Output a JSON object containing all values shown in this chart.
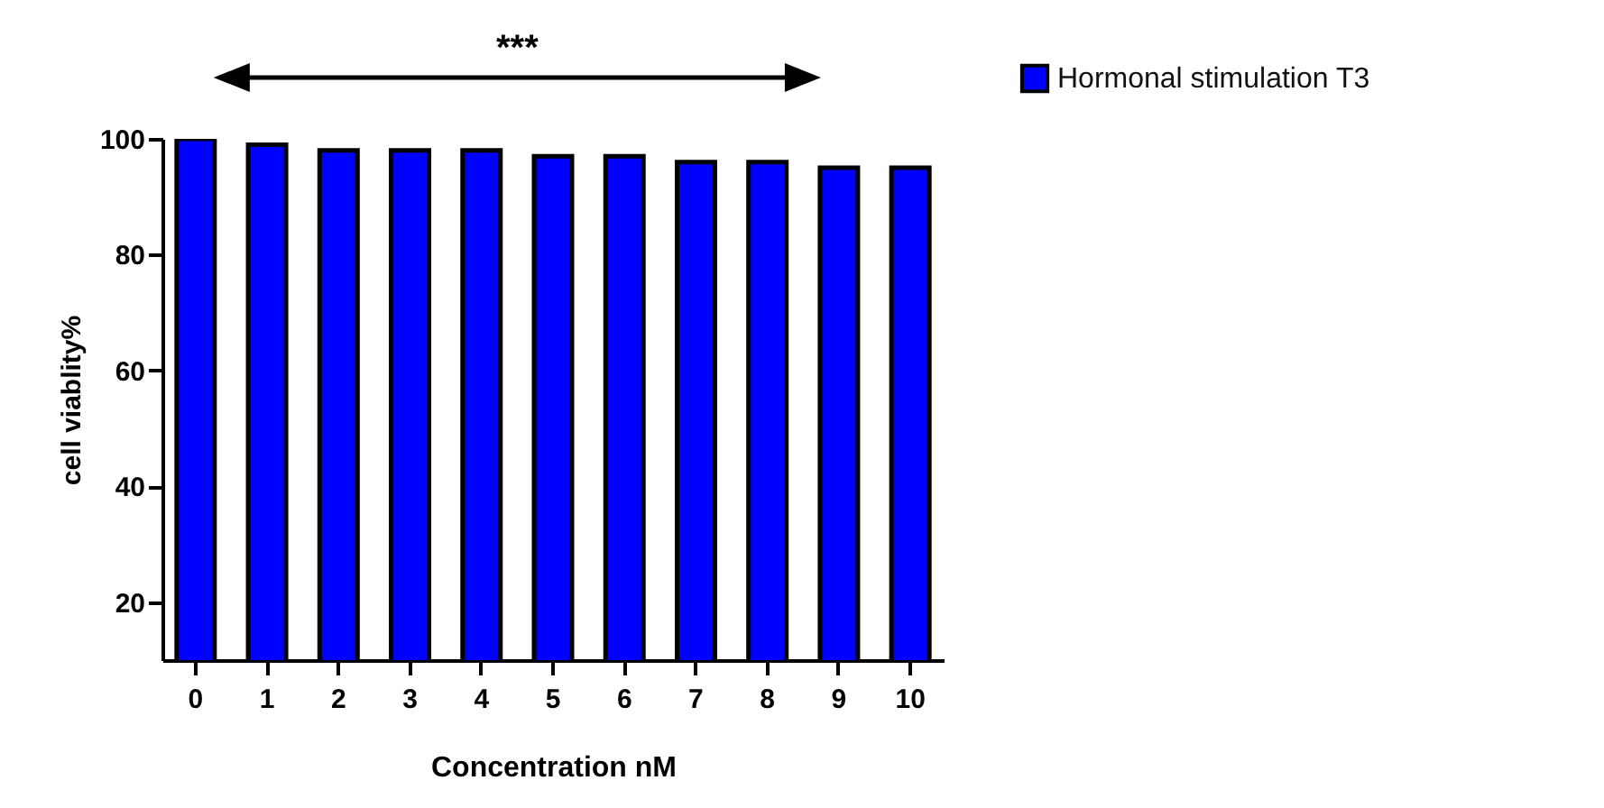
{
  "chart_data": {
    "type": "bar",
    "xlabel": "Concentration nM",
    "ylabel": "cell viablity%",
    "categories": [
      "0",
      "1",
      "2",
      "3",
      "4",
      "5",
      "6",
      "7",
      "8",
      "9",
      "10"
    ],
    "series": [
      {
        "name": "Hormonal stimulation T3",
        "color": "#0000ff",
        "values": [
          100,
          99,
          98,
          98,
          98,
          97,
          97,
          96,
          96,
          95,
          95
        ]
      }
    ],
    "ylim": [
      10,
      100
    ],
    "yticks": [
      20,
      40,
      60,
      80,
      100
    ],
    "grid": false,
    "legend": "top right",
    "annotations": [
      "***"
    ]
  }
}
